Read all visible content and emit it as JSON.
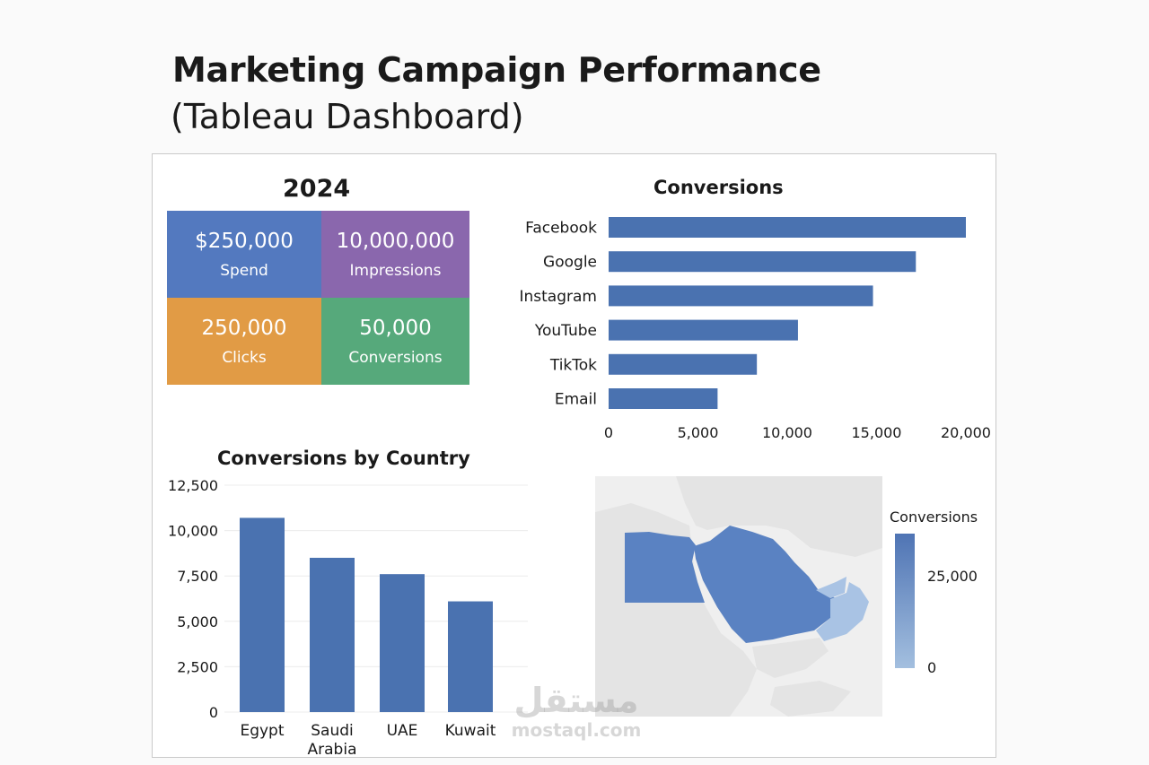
{
  "header": {
    "title": "Marketing Campaign Performance",
    "subtitle": "(Tableau Dashboard)"
  },
  "kpis": {
    "year": "2024",
    "tiles": [
      {
        "value": "$250,000",
        "label": "Spend",
        "color": "#5379bf"
      },
      {
        "value": "10,000,000",
        "label": "Impressions",
        "color": "#8a67ad"
      },
      {
        "value": "250,000",
        "label": "Clicks",
        "color": "#e19b45"
      },
      {
        "value": "50,000",
        "label": "Conversions",
        "color": "#56a97b"
      }
    ]
  },
  "colors": {
    "bar": "#4a72b0",
    "map_dark": "#5a82c2",
    "map_light": "#a9c3e4",
    "land": "#e4e4e4",
    "background_map": "#efefef"
  },
  "chart_data": [
    {
      "type": "bar",
      "orientation": "horizontal",
      "title": "Conversions",
      "categories": [
        "Facebook",
        "Google",
        "Instagram",
        "YouTube",
        "TikTok",
        "Email"
      ],
      "values": [
        20000,
        17200,
        14800,
        10600,
        8300,
        6100
      ],
      "xlim": [
        0,
        20000
      ],
      "xticks": [
        0,
        5000,
        10000,
        15000,
        20000
      ],
      "xtick_labels": [
        "0",
        "5,000",
        "10,000",
        "15,000",
        "20,000"
      ],
      "grid": false
    },
    {
      "type": "bar",
      "orientation": "vertical",
      "title": "Conversions by Country",
      "categories": [
        "Egypt",
        "Saudi Arabia",
        "UAE",
        "Kuwait"
      ],
      "values": [
        10700,
        8500,
        7600,
        6100
      ],
      "ylim": [
        0,
        12500
      ],
      "yticks": [
        0,
        2500,
        5000,
        7500,
        10000,
        12500
      ],
      "ytick_labels": [
        "0",
        "2,500",
        "5,000",
        "7,500",
        "10,000",
        "12,500"
      ],
      "grid": true
    },
    {
      "type": "map",
      "legend_title": "Conversions",
      "legend_max_label": "25,000",
      "legend_min_label": "0",
      "legend_range": [
        0,
        25000
      ],
      "regions": [
        "Egypt",
        "Saudi Arabia",
        "UAE",
        "Oman"
      ]
    }
  ],
  "watermark": {
    "logo": "مستقل",
    "url": "mostaql.com"
  }
}
